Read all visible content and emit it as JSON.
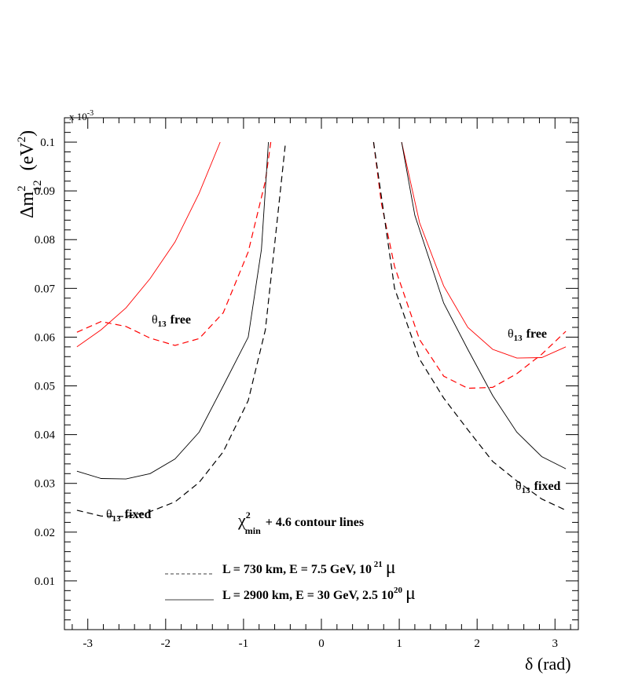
{
  "chart_data": {
    "type": "line",
    "xlabel": "δ (rad)",
    "ylabel": "Δm²₁₂ (eV²)",
    "ylabel_parts": {
      "delta": "Δm",
      "sup": "2",
      "sub": "12",
      "unit_open": "(eV",
      "unit_sup": "2",
      "unit_close": ")"
    },
    "y_multiplier": "x 10",
    "y_multiplier_exp": "-3",
    "xlim": [
      -3.3,
      3.3
    ],
    "ylim": [
      0.0,
      0.105
    ],
    "x_ticks": [
      -3,
      -2,
      -1,
      0,
      1,
      2,
      3
    ],
    "y_ticks": [
      0.01,
      0.02,
      0.03,
      0.04,
      0.05,
      0.06,
      0.07,
      0.08,
      0.09,
      0.1
    ],
    "colors": {
      "red": "#ff0000",
      "black": "#000000"
    },
    "series": [
      {
        "id": "red-solid-left",
        "color": "red",
        "dash": false,
        "points": [
          [
            -3.14,
            0.058
          ],
          [
            -2.83,
            0.0615
          ],
          [
            -2.51,
            0.066
          ],
          [
            -2.2,
            0.072
          ],
          [
            -1.88,
            0.0795
          ],
          [
            -1.57,
            0.0895
          ],
          [
            -1.3,
            0.1
          ]
        ]
      },
      {
        "id": "red-solid-right",
        "color": "red",
        "dash": false,
        "points": [
          [
            1.03,
            0.1
          ],
          [
            1.26,
            0.0835
          ],
          [
            1.57,
            0.0705
          ],
          [
            1.88,
            0.062
          ],
          [
            2.2,
            0.0575
          ],
          [
            2.51,
            0.0557
          ],
          [
            2.83,
            0.0558
          ],
          [
            3.14,
            0.058
          ]
        ]
      },
      {
        "id": "red-dashed-left",
        "color": "red",
        "dash": true,
        "points": [
          [
            -3.14,
            0.061
          ],
          [
            -2.83,
            0.0632
          ],
          [
            -2.51,
            0.0622
          ],
          [
            -2.2,
            0.0598
          ],
          [
            -1.88,
            0.0583
          ],
          [
            -1.57,
            0.0597
          ],
          [
            -1.26,
            0.065
          ],
          [
            -0.94,
            0.0775
          ],
          [
            -0.72,
            0.092
          ],
          [
            -0.65,
            0.1
          ]
        ]
      },
      {
        "id": "red-dashed-right",
        "color": "red",
        "dash": true,
        "points": [
          [
            0.67,
            0.1
          ],
          [
            0.77,
            0.0875
          ],
          [
            0.94,
            0.0745
          ],
          [
            1.26,
            0.0595
          ],
          [
            1.57,
            0.052
          ],
          [
            1.88,
            0.0495
          ],
          [
            2.2,
            0.0497
          ],
          [
            2.51,
            0.0525
          ],
          [
            2.83,
            0.0565
          ],
          [
            3.14,
            0.0612
          ]
        ]
      },
      {
        "id": "black-solid-left",
        "color": "black",
        "dash": false,
        "points": [
          [
            -3.14,
            0.0325
          ],
          [
            -2.83,
            0.031
          ],
          [
            -2.51,
            0.0309
          ],
          [
            -2.2,
            0.032
          ],
          [
            -1.88,
            0.035
          ],
          [
            -1.57,
            0.0405
          ],
          [
            -1.26,
            0.05
          ],
          [
            -0.94,
            0.06
          ],
          [
            -0.77,
            0.078
          ],
          [
            -0.68,
            0.1
          ]
        ]
      },
      {
        "id": "black-solid-right",
        "color": "black",
        "dash": false,
        "points": [
          [
            1.03,
            0.1
          ],
          [
            1.2,
            0.085
          ],
          [
            1.57,
            0.067
          ],
          [
            1.88,
            0.0575
          ],
          [
            2.2,
            0.048
          ],
          [
            2.51,
            0.0405
          ],
          [
            2.83,
            0.0355
          ],
          [
            3.14,
            0.033
          ]
        ]
      },
      {
        "id": "black-dashed-left",
        "color": "black",
        "dash": true,
        "points": [
          [
            -3.14,
            0.0245
          ],
          [
            -2.83,
            0.0233
          ],
          [
            -2.51,
            0.0232
          ],
          [
            -2.2,
            0.0242
          ],
          [
            -1.88,
            0.0262
          ],
          [
            -1.57,
            0.0302
          ],
          [
            -1.26,
            0.0365
          ],
          [
            -0.94,
            0.047
          ],
          [
            -0.72,
            0.0615
          ],
          [
            -0.6,
            0.079
          ],
          [
            -0.46,
            0.1
          ]
        ]
      },
      {
        "id": "black-dashed-right",
        "color": "black",
        "dash": true,
        "points": [
          [
            0.67,
            0.1
          ],
          [
            0.94,
            0.07
          ],
          [
            1.26,
            0.0555
          ],
          [
            1.57,
            0.0475
          ],
          [
            1.88,
            0.041
          ],
          [
            2.2,
            0.0345
          ],
          [
            2.51,
            0.0305
          ],
          [
            2.83,
            0.0268
          ],
          [
            3.14,
            0.0245
          ]
        ]
      }
    ],
    "annotations": {
      "theta_free_left": {
        "theta": "θ",
        "sub": "13",
        "text": "free",
        "at": [
          -2.0,
          0.0655
        ]
      },
      "theta_free_right": {
        "theta": "θ",
        "sub": "13",
        "text": "free",
        "at": [
          2.7,
          0.0595
        ]
      },
      "theta_fixed_left": {
        "theta": "θ",
        "sub": "13",
        "text": "fixed",
        "at": [
          -2.6,
          0.0255
        ]
      },
      "theta_fixed_right": {
        "theta": "θ",
        "sub": "13",
        "text": "fixed",
        "at": [
          2.8,
          0.032
        ]
      },
      "chi_label": {
        "chi": "χ",
        "sup": "2",
        "sub": "min",
        "text": "+ 4.6    contour lines",
        "at": [
          -1.03,
          0.0235
        ]
      }
    },
    "legend": {
      "placement": "bottom-center",
      "entries": [
        {
          "label": "L = 730 km, E = 7.5 GeV, 10",
          "exp": " 21",
          "unit": "μ",
          "style": "dashed",
          "color": "black"
        },
        {
          "label": "L = 2900 km, E = 30 GeV, 2.5   10",
          "exp": "20",
          "unit": "μ",
          "style": "solid",
          "color": "black"
        }
      ]
    }
  }
}
